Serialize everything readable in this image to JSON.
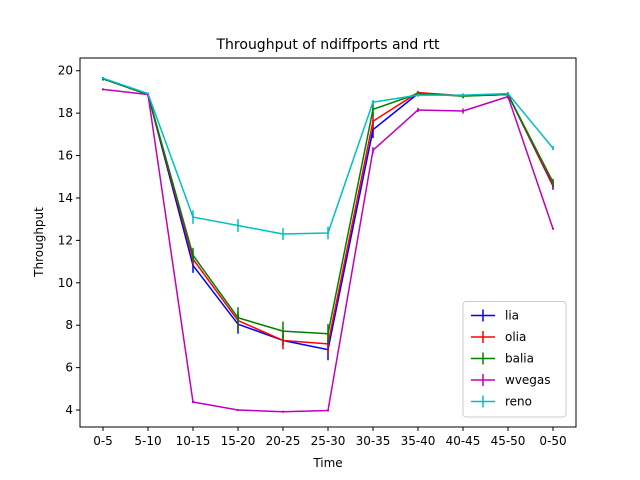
{
  "chart_data": {
    "type": "line",
    "title": "Throughput of ndiffports and rtt",
    "xlabel": "Time",
    "ylabel": "Throughput",
    "categories": [
      "0-5",
      "5-10",
      "10-15",
      "15-20",
      "20-25",
      "25-30",
      "30-35",
      "35-40",
      "40-45",
      "45-50",
      "0-50"
    ],
    "ylim": [
      3.2,
      20.6
    ],
    "yticks": [
      4,
      6,
      8,
      10,
      12,
      14,
      16,
      18,
      20
    ],
    "grid": false,
    "legend_position": "lower-right",
    "error_bars": true,
    "series": [
      {
        "name": "lia",
        "color": "#0000ff",
        "values": [
          19.62,
          18.88,
          10.82,
          8.05,
          7.28,
          6.85,
          17.22,
          18.92,
          18.82,
          18.88,
          14.57
        ],
        "errors": [
          0.08,
          0.08,
          0.35,
          0.45,
          0.25,
          0.5,
          0.4,
          0.08,
          0.1,
          0.1,
          0.18
        ]
      },
      {
        "name": "olia",
        "color": "#ff0000",
        "values": [
          19.62,
          18.88,
          11.12,
          8.22,
          7.28,
          7.12,
          17.62,
          18.97,
          18.82,
          18.88,
          14.62
        ],
        "errors": [
          0.08,
          0.08,
          0.3,
          0.4,
          0.42,
          0.45,
          0.4,
          0.08,
          0.1,
          0.1,
          0.15
        ]
      },
      {
        "name": "balia",
        "color": "#008000",
        "values": [
          19.62,
          18.88,
          11.3,
          8.35,
          7.72,
          7.6,
          18.18,
          18.92,
          18.8,
          18.88,
          14.75
        ],
        "errors": [
          0.08,
          0.08,
          0.35,
          0.5,
          0.45,
          0.45,
          0.3,
          0.08,
          0.1,
          0.1,
          0.15
        ]
      },
      {
        "name": "wvegas",
        "color": "#bf00bf",
        "values": [
          19.12,
          18.88,
          4.38,
          4.0,
          3.92,
          3.98,
          16.25,
          18.15,
          18.1,
          18.78,
          12.55
        ],
        "errors": [
          0.05,
          0.05,
          0.05,
          0.05,
          0.05,
          0.05,
          0.15,
          0.1,
          0.12,
          0.1,
          0.05
        ]
      },
      {
        "name": "reno",
        "color": "#00bfbf",
        "values": [
          19.65,
          18.92,
          13.1,
          12.7,
          12.3,
          12.35,
          18.52,
          18.85,
          18.85,
          18.92,
          16.35
        ],
        "errors": [
          0.05,
          0.05,
          0.32,
          0.3,
          0.28,
          0.3,
          0.1,
          0.08,
          0.08,
          0.08,
          0.1
        ]
      }
    ]
  }
}
